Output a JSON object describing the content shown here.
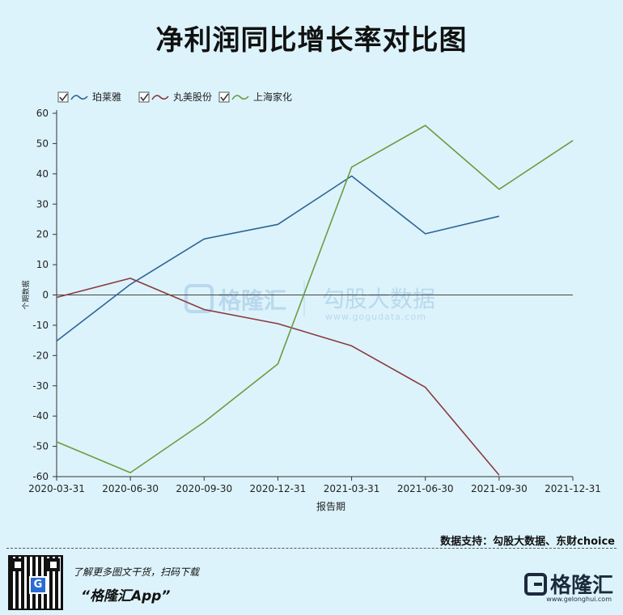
{
  "page": {
    "title": "净利润同比增长率对比图"
  },
  "chart_data": {
    "type": "line",
    "title": "净利润同比增长率对比图",
    "xlabel": "报告期",
    "ylabel": "个期数据",
    "ylim": [
      -60,
      60
    ],
    "yticks": [
      60,
      50,
      40,
      30,
      20,
      10,
      0,
      -10,
      -20,
      -30,
      -40,
      -50,
      -60
    ],
    "categories": [
      "2020-03-31",
      "2020-06-30",
      "2020-09-30",
      "2020-12-31",
      "2021-03-31",
      "2021-06-30",
      "2021-09-30",
      "2021-12-31"
    ],
    "grid": false,
    "legend_position": "top-left",
    "series": [
      {
        "name": "珀莱雅",
        "color": "#2f6496",
        "values": [
          -15.2,
          3.5,
          18.5,
          23.3,
          39.3,
          20.2,
          26,
          null
        ]
      },
      {
        "name": "丸美股份",
        "color": "#8b3a3e",
        "values": [
          -0.8,
          5.5,
          -4.8,
          -9.5,
          -16.8,
          -30.5,
          -59.5,
          null
        ]
      },
      {
        "name": "上海家化",
        "color": "#6a9d3f",
        "values": [
          -48.5,
          -58.7,
          -42,
          -22.8,
          42.2,
          56,
          34.9,
          51
        ]
      }
    ]
  },
  "watermark": {
    "brand": "格隆汇",
    "partner": "勾股大数据",
    "url": "www.gogudata.com"
  },
  "footer": {
    "source": "数据支持：勾股大数据、东财choice",
    "promo_line1": "了解更多图文干货，扫码下载",
    "promo_line2": "“格隆汇App”",
    "brand": "格隆汇",
    "brand_url": "www.gelonghui.com"
  }
}
